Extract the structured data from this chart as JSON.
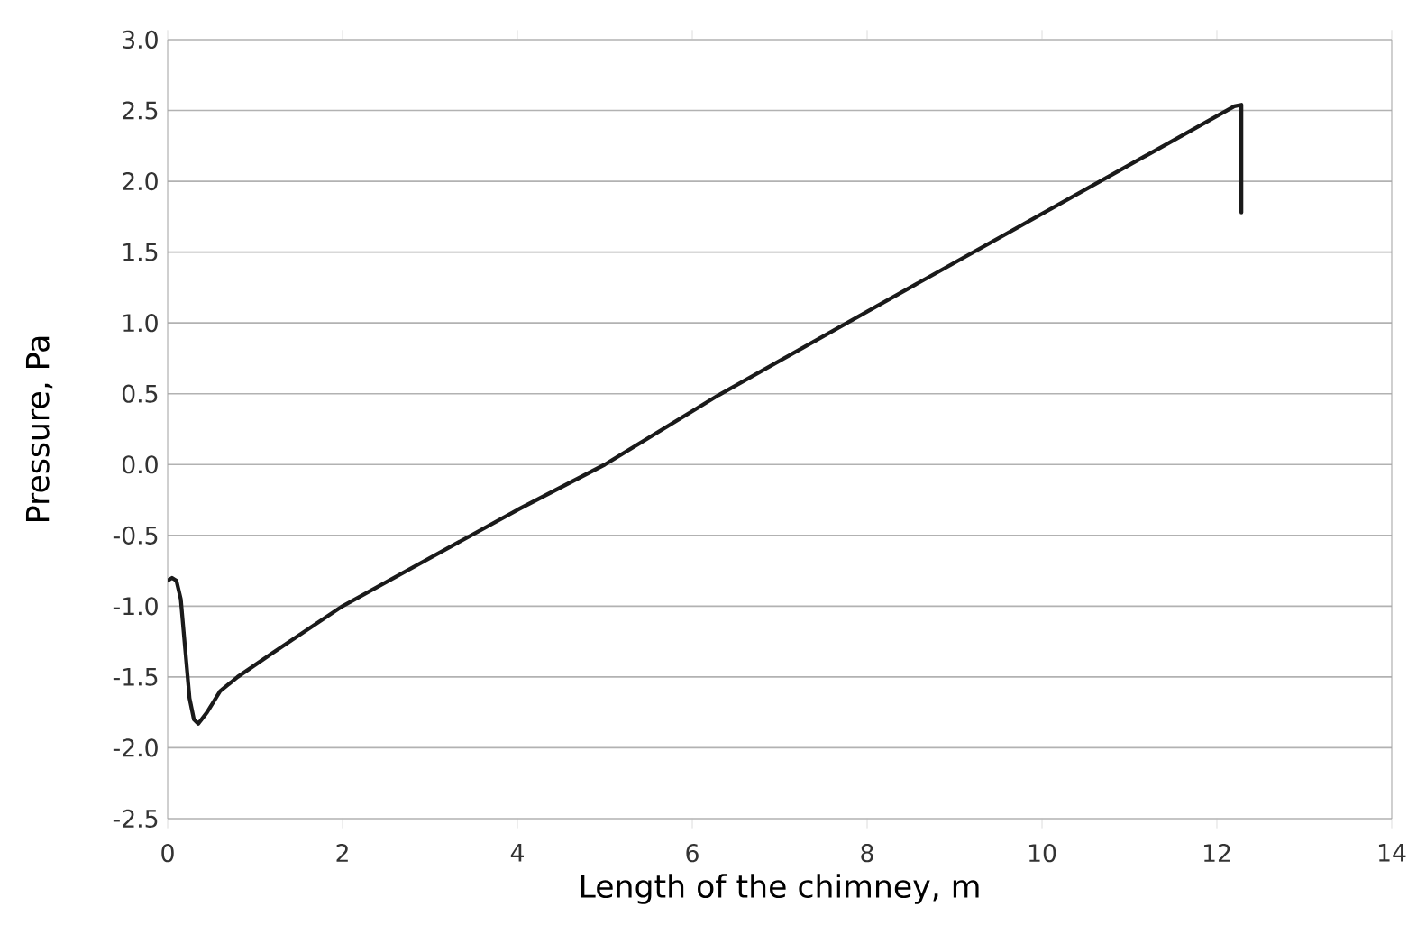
{
  "chart_data": {
    "type": "line",
    "xlabel": "Length of the chimney, m",
    "ylabel": "Pressure, Pa",
    "series": [
      {
        "color": "#1a1a1a",
        "x": [
          0.0,
          0.05,
          0.1,
          0.15,
          0.2,
          0.25,
          0.3,
          0.35,
          0.45,
          0.6,
          0.8,
          1.2,
          2.0,
          3.0,
          4.0,
          5.0,
          6.3,
          8.0,
          10.0,
          12.2,
          12.28,
          12.28
        ],
        "values": [
          -0.82,
          -0.8,
          -0.82,
          -0.95,
          -1.3,
          -1.65,
          -1.8,
          -1.83,
          -1.75,
          -1.6,
          -1.5,
          -1.33,
          -1.0,
          -0.66,
          -0.32,
          0.0,
          0.49,
          1.08,
          1.77,
          2.53,
          2.54,
          1.78
        ]
      }
    ],
    "xlim": [
      0,
      14
    ],
    "xticks": [
      0,
      2,
      4,
      6,
      8,
      10,
      12,
      14
    ],
    "ylim": [
      -2.5,
      3.0
    ],
    "yticks": [
      {
        "value": -2.5,
        "label": "-2.5"
      },
      {
        "value": -2.0,
        "label": "-2.0"
      },
      {
        "value": -1.5,
        "label": "-1.5"
      },
      {
        "value": -1.0,
        "label": "-1.0"
      },
      {
        "value": -0.5,
        "label": "-0.5"
      },
      {
        "value": 0.0,
        "label": "0.0"
      },
      {
        "value": 0.5,
        "label": "0.5"
      },
      {
        "value": 1.0,
        "label": "1.0"
      },
      {
        "value": 1.5,
        "label": "1.5"
      },
      {
        "value": 2.0,
        "label": "2.0"
      },
      {
        "value": 2.5,
        "label": "2.5"
      },
      {
        "value": 3.0,
        "label": "3.0"
      }
    ],
    "grid": "y",
    "marker": "none",
    "line_style": "solid"
  }
}
